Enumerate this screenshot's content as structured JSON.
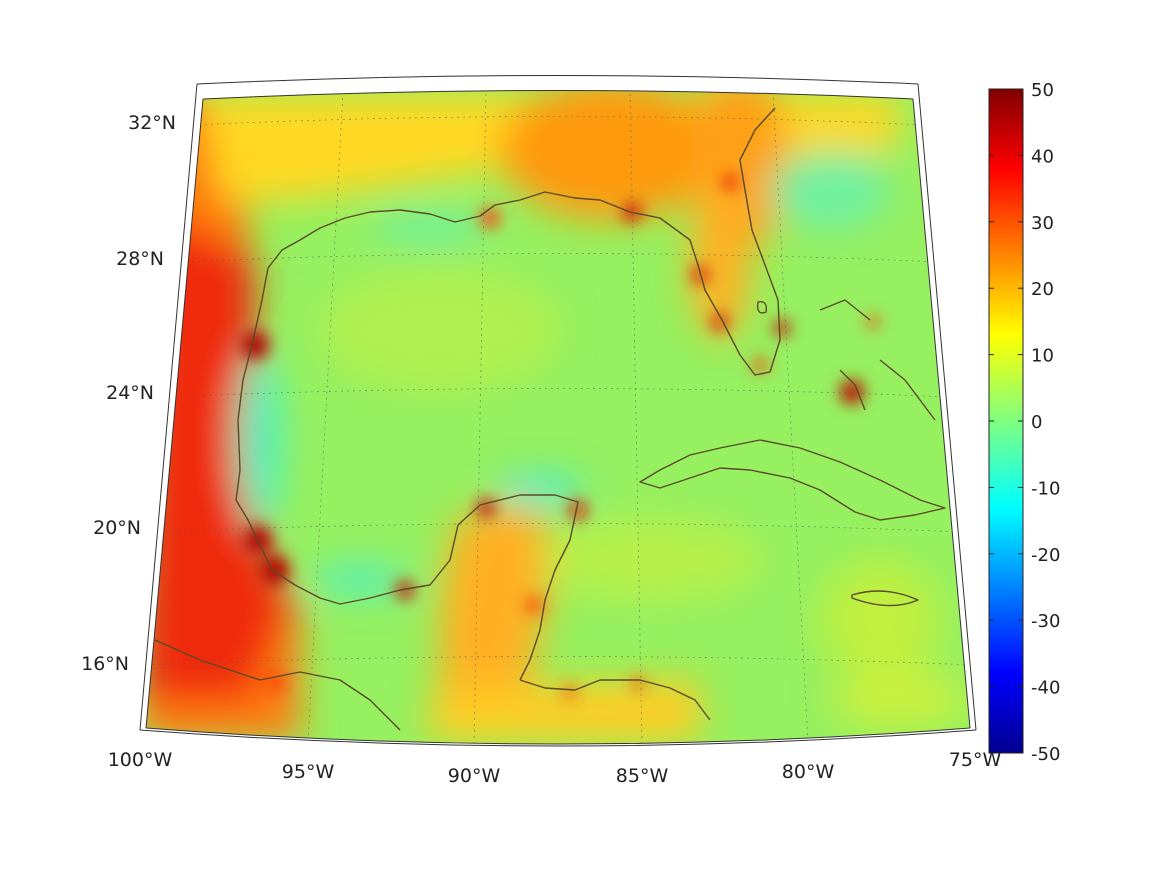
{
  "map": {
    "longitude_labels": [
      "100°W",
      "95°W",
      "90°W",
      "85°W",
      "80°W",
      "75°W"
    ],
    "latitude_labels": [
      "32°N",
      "28°N",
      "24°N",
      "20°N",
      "16°N"
    ],
    "extent": {
      "lon": [
        -100,
        -75
      ],
      "lat": [
        14,
        33
      ]
    },
    "land_outline_color": "#5a4a2a",
    "background_field_color": "#8cf26a"
  },
  "colorbar": {
    "ticks": [
      "50",
      "40",
      "30",
      "20",
      "10",
      "0",
      "-10",
      "-20",
      "-30",
      "-40",
      "-50"
    ],
    "range": [
      -50,
      50
    ],
    "colormap": "jet"
  }
}
